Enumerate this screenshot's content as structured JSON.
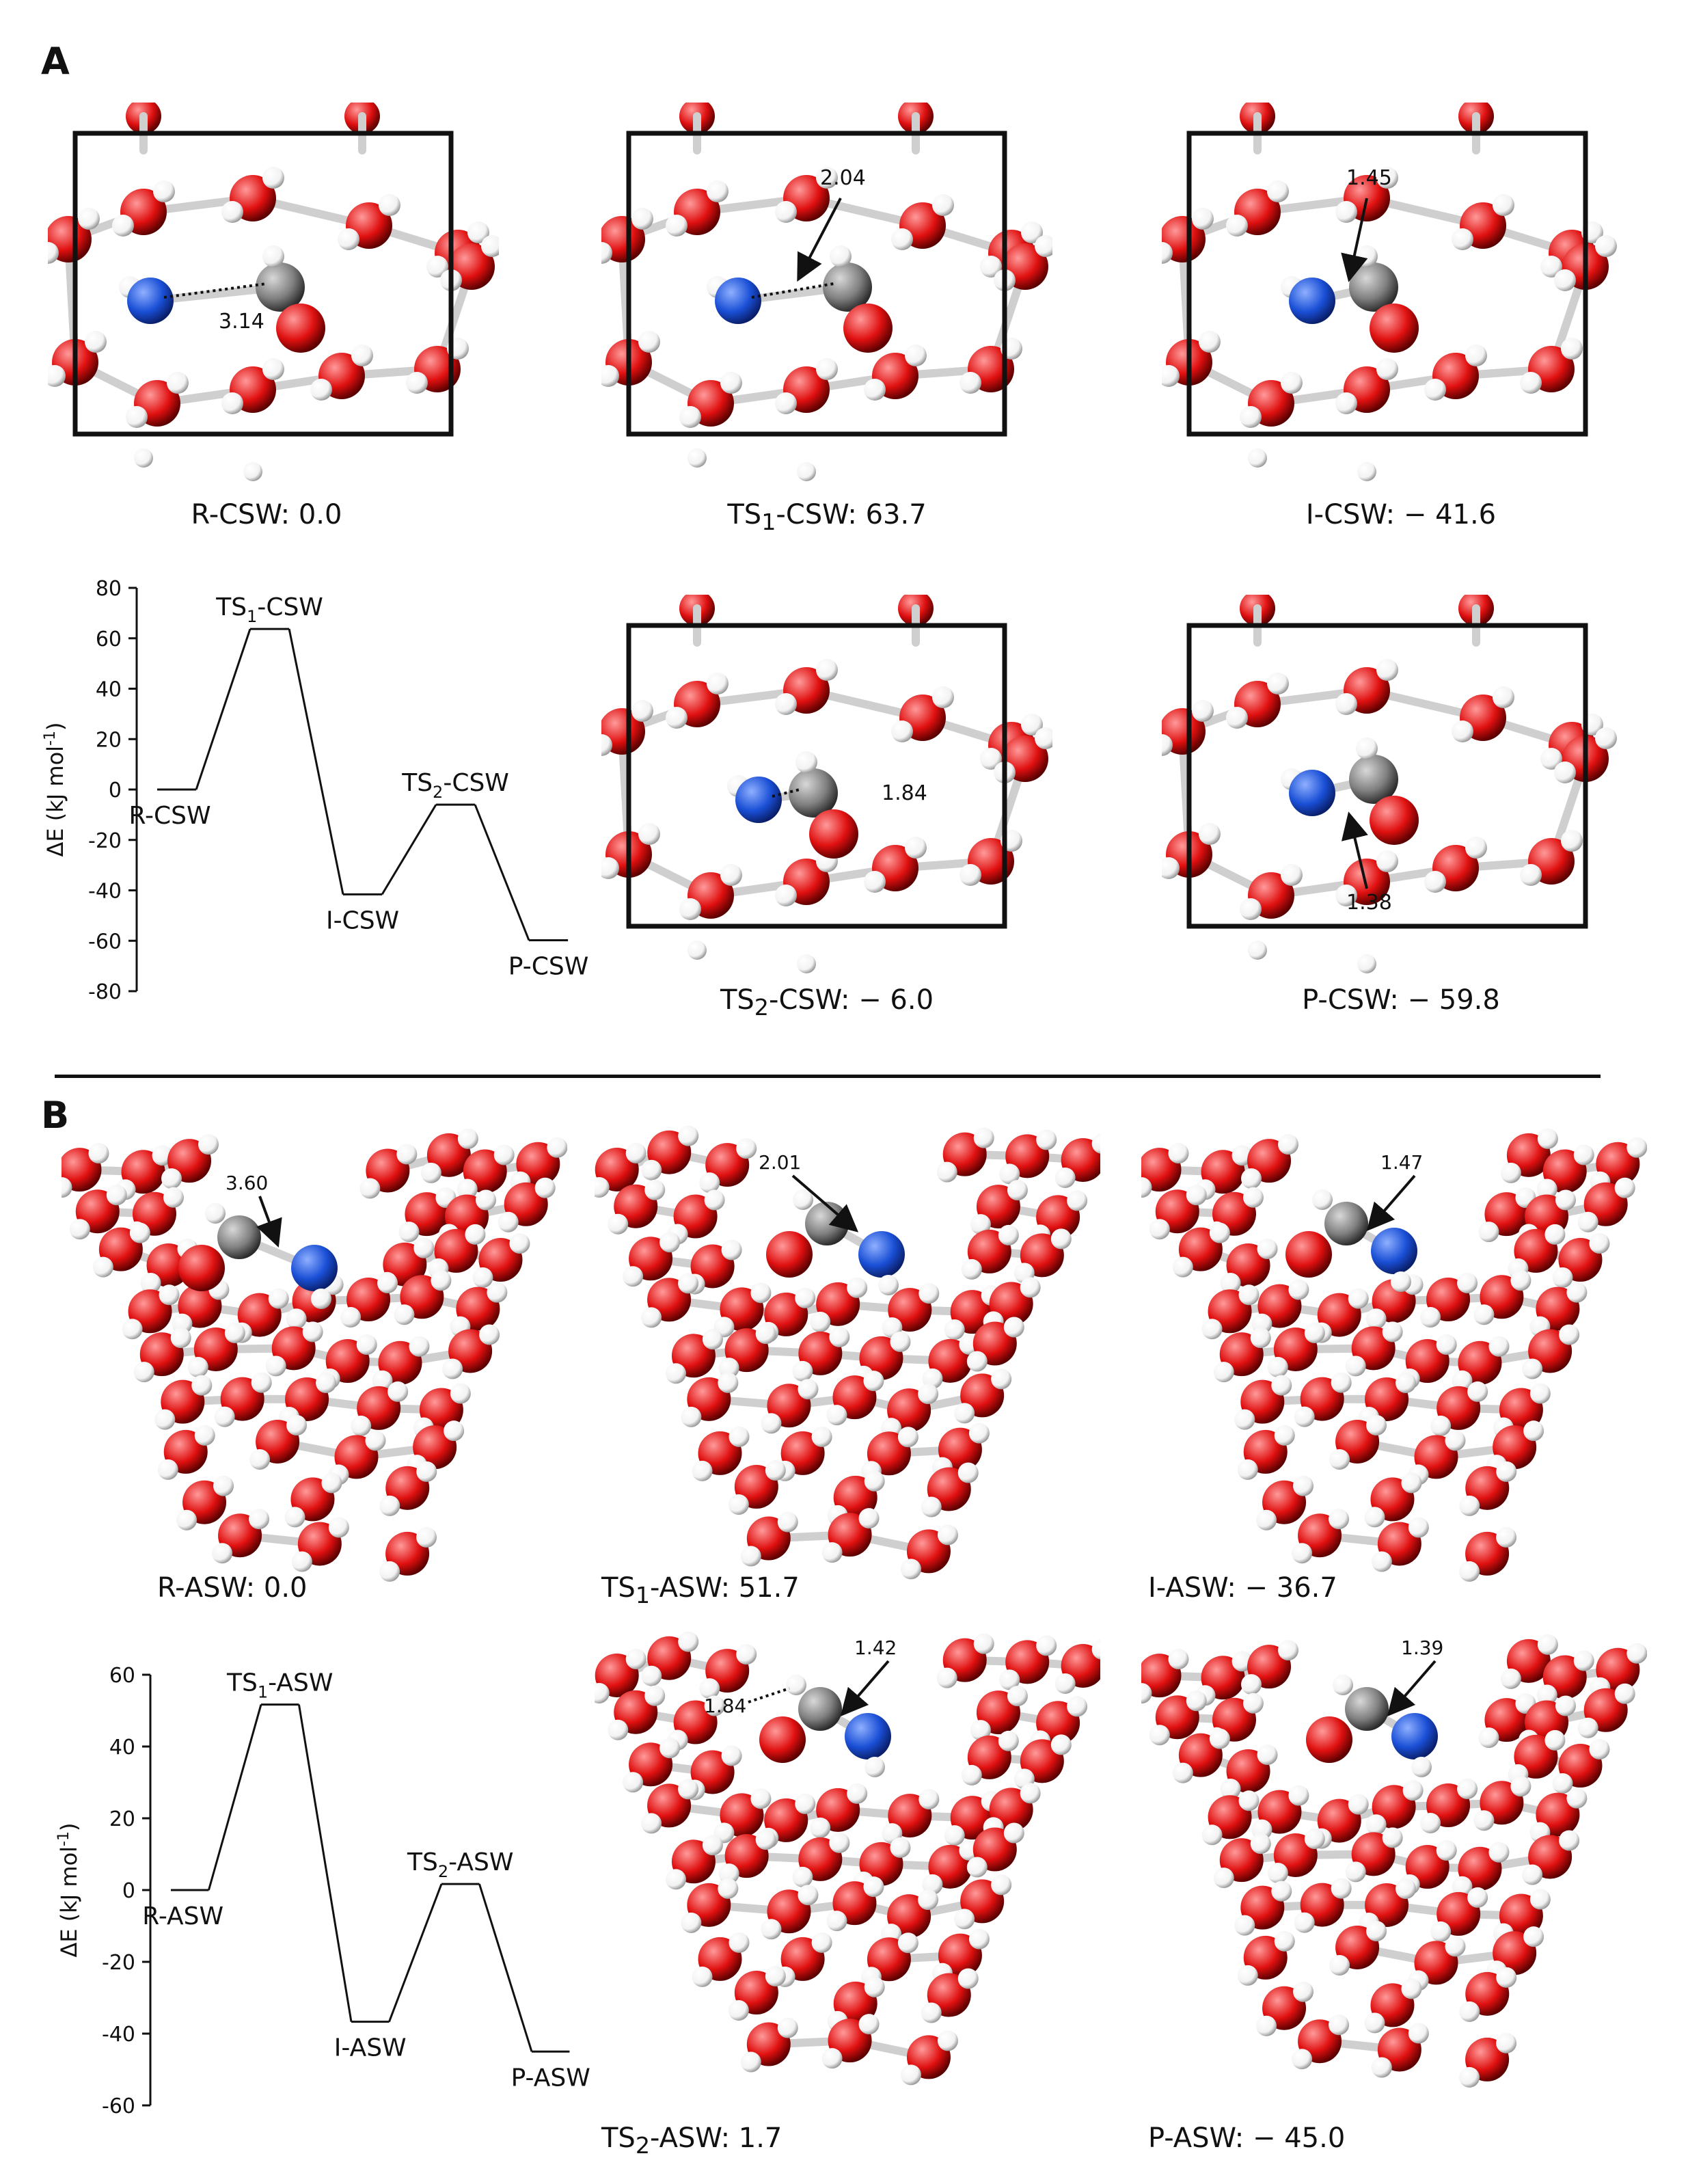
{
  "panels": {
    "A": {
      "label": "A",
      "structures": [
        {
          "key": "r",
          "label": "R-CSW",
          "energy_text": "0.0",
          "distance": "3.14"
        },
        {
          "key": "ts1",
          "label_prefix": "TS",
          "label_sub": "1",
          "label_suffix": "-CSW",
          "energy_text": "63.7",
          "distance": "2.04"
        },
        {
          "key": "i",
          "label": "I-CSW",
          "energy_text": "− 41.6",
          "distance": "1.45"
        },
        {
          "key": "ts2",
          "label_prefix": "TS",
          "label_sub": "2",
          "label_suffix": "-CSW",
          "energy_text": "− 6.0",
          "distance": "1.84"
        },
        {
          "key": "p",
          "label": "P-CSW",
          "energy_text": "− 59.8",
          "distance": "1.38"
        }
      ]
    },
    "B": {
      "label": "B",
      "structures": [
        {
          "key": "r",
          "label": "R-ASW",
          "energy_text": "0.0",
          "distance": "3.60"
        },
        {
          "key": "ts1",
          "label_prefix": "TS",
          "label_sub": "1",
          "label_suffix": "-ASW",
          "energy_text": "51.7",
          "distance": "2.01"
        },
        {
          "key": "i",
          "label": "I-ASW",
          "energy_text": "− 36.7",
          "distance": "1.47"
        },
        {
          "key": "ts2",
          "label_prefix": "TS",
          "label_sub": "2",
          "label_suffix": "-ASW",
          "energy_text": "1.7",
          "distance": "1.42",
          "distance2": "1.84"
        },
        {
          "key": "p",
          "label": "P-ASW",
          "energy_text": "− 45.0",
          "distance": "1.39"
        }
      ]
    }
  },
  "chart_data": [
    {
      "type": "line",
      "title": "",
      "ylabel": "ΔE (kJ mol⁻¹)",
      "ylabel_parts": {
        "main": "ΔE (kJ mol",
        "sup": "-1",
        "end": ")"
      },
      "xlabel": "",
      "ylim": [
        -80,
        80
      ],
      "yticks": [
        80,
        60,
        40,
        20,
        0,
        -20,
        -40,
        -60,
        -80
      ],
      "x": [
        "R-CSW",
        "TS1-CSW",
        "I-CSW",
        "TS2-CSW",
        "P-CSW"
      ],
      "values": [
        0.0,
        63.7,
        -41.6,
        -6.0,
        -59.8
      ],
      "point_labels": [
        {
          "text": "R-CSW"
        },
        {
          "prefix": "TS",
          "sub": "1",
          "suffix": "-CSW"
        },
        {
          "text": "I-CSW"
        },
        {
          "prefix": "TS",
          "sub": "2",
          "suffix": "-CSW"
        },
        {
          "text": "P-CSW"
        }
      ]
    },
    {
      "type": "line",
      "title": "",
      "ylabel": "ΔE (kJ mol⁻¹)",
      "ylabel_parts": {
        "main": "ΔE (kJ mol",
        "sup": "-1",
        "end": ")"
      },
      "xlabel": "",
      "ylim": [
        -60,
        60
      ],
      "yticks": [
        60,
        40,
        20,
        0,
        -20,
        -40,
        -60
      ],
      "x": [
        "R-ASW",
        "TS1-ASW",
        "I-ASW",
        "TS2-ASW",
        "P-ASW"
      ],
      "values": [
        0.0,
        51.7,
        -36.7,
        1.7,
        -45.0
      ],
      "point_labels": [
        {
          "text": "R-ASW"
        },
        {
          "prefix": "TS",
          "sub": "1",
          "suffix": "-ASW"
        },
        {
          "text": "I-ASW"
        },
        {
          "prefix": "TS",
          "sub": "2",
          "suffix": "-ASW"
        },
        {
          "text": "P-ASW"
        }
      ]
    }
  ],
  "colors": {
    "oxygen": "#e01010",
    "hydrogen": "#f2f2f2",
    "nitrogen": "#1a4fd6",
    "carbon": "#808080",
    "cell": "#111111"
  }
}
